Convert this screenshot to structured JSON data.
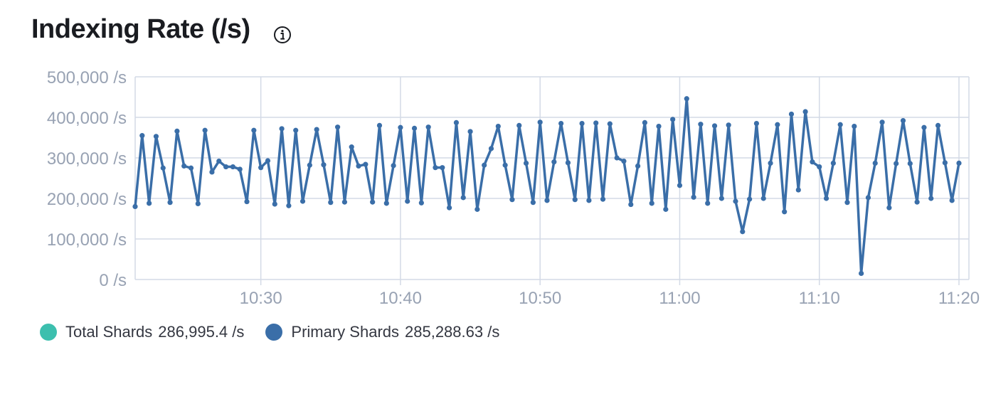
{
  "title": "Indexing Rate (/s)",
  "icons": {
    "info": "info-icon"
  },
  "colors": {
    "total": "#3cbfae",
    "primary": "#3a6ea8",
    "grid": "#d3dae6",
    "axis_text": "#98a2b3"
  },
  "chart_data": {
    "type": "line",
    "title": "Indexing Rate (/s)",
    "xlabel": "",
    "ylabel": "",
    "ylim": [
      0,
      500000
    ],
    "y_ticks": [
      "0 /s",
      "100,000 /s",
      "200,000 /s",
      "300,000 /s",
      "400,000 /s",
      "500,000 /s"
    ],
    "y_tick_values": [
      0,
      100000,
      200000,
      300000,
      400000,
      500000
    ],
    "x_range_minutes": [
      "10:21",
      "11:20"
    ],
    "x_ticks": [
      "10:30",
      "10:40",
      "10:50",
      "11:00",
      "11:10",
      "11:20"
    ],
    "grid": true,
    "legend_position": "bottom-left",
    "legend": [
      {
        "name": "Total Shards",
        "value": "286,995.4 /s",
        "color": "#3cbfae"
      },
      {
        "name": "Primary Shards",
        "value": "285,288.63 /s",
        "color": "#3a6ea8"
      }
    ],
    "series": [
      {
        "name": "Primary Shards",
        "x": [
          "10:21:00",
          "10:21:30",
          "10:22:00",
          "10:22:30",
          "10:23:00",
          "10:23:30",
          "10:24:00",
          "10:24:30",
          "10:25:00",
          "10:25:30",
          "10:26:00",
          "10:26:30",
          "10:27:00",
          "10:27:30",
          "10:28:00",
          "10:28:30",
          "10:29:00",
          "10:29:30",
          "10:30:00",
          "10:30:30",
          "10:31:00",
          "10:31:30",
          "10:32:00",
          "10:32:30",
          "10:33:00",
          "10:33:30",
          "10:34:00",
          "10:34:30",
          "10:35:00",
          "10:35:30",
          "10:36:00",
          "10:36:30",
          "10:37:00",
          "10:37:30",
          "10:38:00",
          "10:38:30",
          "10:39:00",
          "10:39:30",
          "10:40:00",
          "10:40:30",
          "10:41:00",
          "10:41:30",
          "10:42:00",
          "10:42:30",
          "10:43:00",
          "10:43:30",
          "10:44:00",
          "10:44:30",
          "10:45:00",
          "10:45:30",
          "10:46:00",
          "10:46:30",
          "10:47:00",
          "10:47:30",
          "10:48:00",
          "10:48:30",
          "10:49:00",
          "10:49:30",
          "10:50:00",
          "10:50:30",
          "10:51:00",
          "10:51:30",
          "10:52:00",
          "10:52:30",
          "10:53:00",
          "10:53:30",
          "10:54:00",
          "10:54:30",
          "10:55:00",
          "10:55:30",
          "10:56:00",
          "10:56:30",
          "10:57:00",
          "10:57:30",
          "10:58:00",
          "10:58:30",
          "10:59:00",
          "10:59:30",
          "11:00:00",
          "11:00:30",
          "11:01:00",
          "11:01:30",
          "11:02:00",
          "11:02:30",
          "11:03:00",
          "11:03:30",
          "11:04:00",
          "11:04:30",
          "11:05:00",
          "11:05:30",
          "11:06:00",
          "11:06:30",
          "11:07:00",
          "11:07:30",
          "11:08:00",
          "11:08:30",
          "11:09:00",
          "11:09:30",
          "11:10:00",
          "11:10:30",
          "11:11:00",
          "11:11:30",
          "11:12:00",
          "11:12:30",
          "11:13:00",
          "11:13:30",
          "11:14:00",
          "11:14:30",
          "11:15:00",
          "11:15:30",
          "11:16:00",
          "11:16:30",
          "11:17:00",
          "11:17:30",
          "11:18:00",
          "11:18:30",
          "11:19:00",
          "11:19:30",
          "11:20:00"
        ],
        "values": [
          180000,
          355000,
          188000,
          353000,
          275000,
          190000,
          366000,
          280000,
          275000,
          187000,
          368000,
          265000,
          292000,
          278000,
          278000,
          272000,
          192000,
          368000,
          276000,
          293000,
          186000,
          372000,
          182000,
          368000,
          193000,
          282000,
          370000,
          283000,
          190000,
          376000,
          191000,
          327000,
          280000,
          284000,
          191000,
          380000,
          188000,
          281000,
          375000,
          193000,
          373000,
          189000,
          376000,
          276000,
          276000,
          177000,
          387000,
          202000,
          365000,
          173000,
          282000,
          323000,
          378000,
          282000,
          197000,
          380000,
          287000,
          190000,
          388000,
          195000,
          290000,
          385000,
          288000,
          197000,
          385000,
          195000,
          386000,
          198000,
          384000,
          300000,
          292000,
          185000,
          280000,
          387000,
          188000,
          378000,
          173000,
          395000,
          232000,
          446000,
          203000,
          383000,
          188000,
          379000,
          200000,
          381000,
          193000,
          118000,
          198000,
          385000,
          200000,
          287000,
          382000,
          167000,
          408000,
          221000,
          414000,
          290000,
          278000,
          200000,
          287000,
          382000,
          190000,
          378000,
          15000,
          202000,
          287000,
          388000,
          177000,
          286000,
          392000,
          286000,
          191000,
          375000,
          200000,
          380000,
          288000,
          195000,
          287000
        ]
      }
    ]
  }
}
